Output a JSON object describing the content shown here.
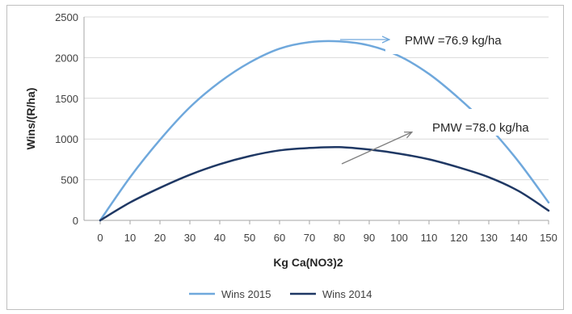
{
  "chart_data": {
    "type": "line",
    "xlabel": "Kg Ca(NO3)2",
    "ylabel": "Wins/(R/ha)",
    "x": [
      0,
      10,
      20,
      30,
      40,
      50,
      60,
      70,
      80,
      90,
      100,
      110,
      120,
      130,
      140,
      150
    ],
    "xlim": [
      0,
      150
    ],
    "ylim": [
      0,
      2500
    ],
    "yticks": [
      0,
      500,
      1000,
      1500,
      2000,
      2500
    ],
    "grid": "horizontal",
    "legend": "bottom",
    "series": [
      {
        "name": "Wins 2015",
        "color": "#6fa8dc",
        "values": [
          0,
          530,
          990,
          1390,
          1700,
          1940,
          2110,
          2190,
          2200,
          2150,
          2020,
          1800,
          1500,
          1150,
          720,
          220
        ]
      },
      {
        "name": "Wins 2014",
        "color": "#1f3864",
        "values": [
          0,
          220,
          400,
          560,
          690,
          790,
          860,
          890,
          900,
          870,
          820,
          750,
          650,
          530,
          360,
          120
        ]
      }
    ],
    "annotations": [
      {
        "text": "PMW =76.9 kg/ha"
      },
      {
        "text": "PMW =78.0 kg/ha"
      }
    ]
  }
}
